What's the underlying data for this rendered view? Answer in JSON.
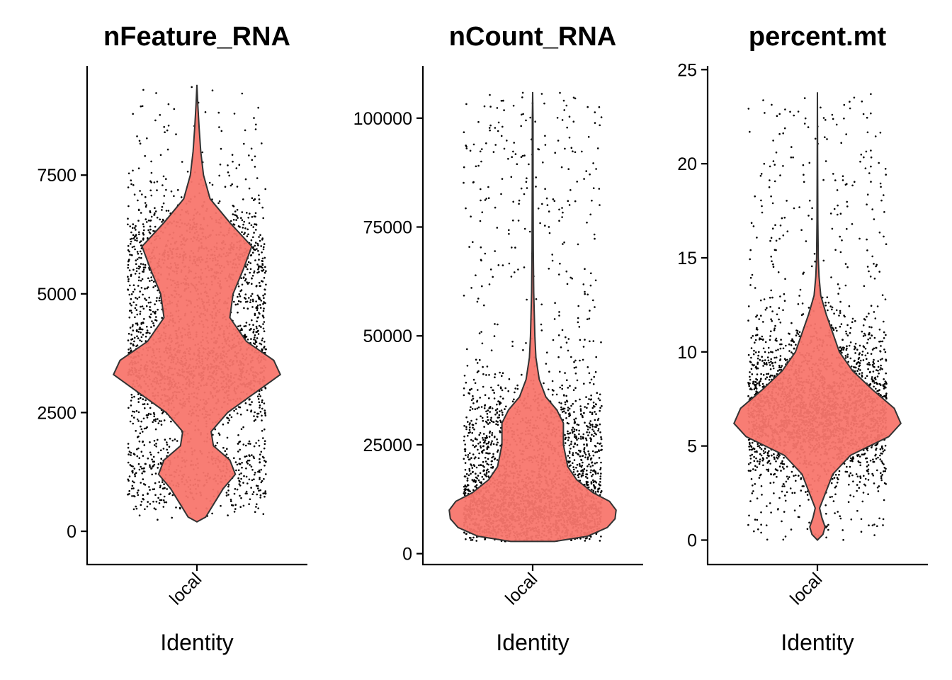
{
  "chart_data": [
    {
      "type": "violin",
      "title": "nFeature_RNA",
      "xlabel": "Identity",
      "ylabel": "",
      "categories": [
        "local"
      ],
      "ylim": [
        -700,
        9800
      ],
      "yticks": [
        0,
        2500,
        5000,
        7500
      ],
      "ytick_labels": [
        "0",
        "2500",
        "5000",
        "7500"
      ],
      "fill_color": "#F8766D",
      "point_color": "#000000",
      "grid": false,
      "legend": "none",
      "range": [
        200,
        9400
      ],
      "density_profile": [
        [
          200,
          0.0
        ],
        [
          300,
          0.08
        ],
        [
          600,
          0.16
        ],
        [
          900,
          0.24
        ],
        [
          1200,
          0.35
        ],
        [
          1500,
          0.3
        ],
        [
          1800,
          0.15
        ],
        [
          2100,
          0.13
        ],
        [
          2500,
          0.28
        ],
        [
          3000,
          0.58
        ],
        [
          3300,
          0.76
        ],
        [
          3600,
          0.7
        ],
        [
          4000,
          0.45
        ],
        [
          4500,
          0.3
        ],
        [
          5000,
          0.33
        ],
        [
          5500,
          0.42
        ],
        [
          6000,
          0.5
        ],
        [
          6500,
          0.3
        ],
        [
          7000,
          0.12
        ],
        [
          7500,
          0.06
        ],
        [
          8000,
          0.035
        ],
        [
          8500,
          0.02
        ],
        [
          9000,
          0.008
        ],
        [
          9400,
          0.0
        ]
      ]
    },
    {
      "type": "violin",
      "title": "nCount_RNA",
      "xlabel": "Identity",
      "ylabel": "",
      "categories": [
        "local"
      ],
      "ylim": [
        -2500,
        112000
      ],
      "yticks": [
        0,
        25000,
        50000,
        75000,
        100000
      ],
      "ytick_labels": [
        "0",
        "25000",
        "50000",
        "75000",
        "100000"
      ],
      "fill_color": "#F8766D",
      "point_color": "#000000",
      "grid": false,
      "legend": "none",
      "range": [
        2800,
        106000
      ],
      "density_profile": [
        [
          2800,
          0.2
        ],
        [
          4000,
          0.5
        ],
        [
          6000,
          0.68
        ],
        [
          8000,
          0.75
        ],
        [
          10000,
          0.76
        ],
        [
          12000,
          0.7
        ],
        [
          14000,
          0.55
        ],
        [
          17000,
          0.4
        ],
        [
          20000,
          0.32
        ],
        [
          25000,
          0.28
        ],
        [
          30000,
          0.28
        ],
        [
          33000,
          0.22
        ],
        [
          36000,
          0.12
        ],
        [
          40000,
          0.06
        ],
        [
          45000,
          0.03
        ],
        [
          50000,
          0.02
        ],
        [
          60000,
          0.01
        ],
        [
          70000,
          0.006
        ],
        [
          85000,
          0.004
        ],
        [
          100000,
          0.003
        ],
        [
          106000,
          0.0
        ]
      ]
    },
    {
      "type": "violin",
      "title": "percent.mt",
      "xlabel": "Identity",
      "ylabel": "",
      "categories": [
        "local"
      ],
      "ylim": [
        -1.3,
        25.2
      ],
      "yticks": [
        0,
        5,
        10,
        15,
        20,
        25
      ],
      "ytick_labels": [
        "0",
        "5",
        "10",
        "15",
        "20",
        "25"
      ],
      "fill_color": "#F8766D",
      "point_color": "#000000",
      "grid": false,
      "legend": "none",
      "range": [
        0.0,
        23.8
      ],
      "density_profile": [
        [
          0.0,
          0.0
        ],
        [
          0.3,
          0.05
        ],
        [
          0.7,
          0.07
        ],
        [
          1.2,
          0.04
        ],
        [
          1.7,
          0.02
        ],
        [
          2.3,
          0.06
        ],
        [
          3.5,
          0.14
        ],
        [
          4.5,
          0.3
        ],
        [
          5.5,
          0.65
        ],
        [
          6.2,
          0.76
        ],
        [
          7.0,
          0.7
        ],
        [
          8.0,
          0.5
        ],
        [
          9.0,
          0.32
        ],
        [
          10.0,
          0.2
        ],
        [
          11.0,
          0.14
        ],
        [
          12.0,
          0.08
        ],
        [
          13.0,
          0.03
        ],
        [
          14.0,
          0.015
        ],
        [
          15.0,
          0.008
        ],
        [
          17.0,
          0.004
        ],
        [
          20.0,
          0.002
        ],
        [
          23.8,
          0.0
        ]
      ]
    }
  ]
}
